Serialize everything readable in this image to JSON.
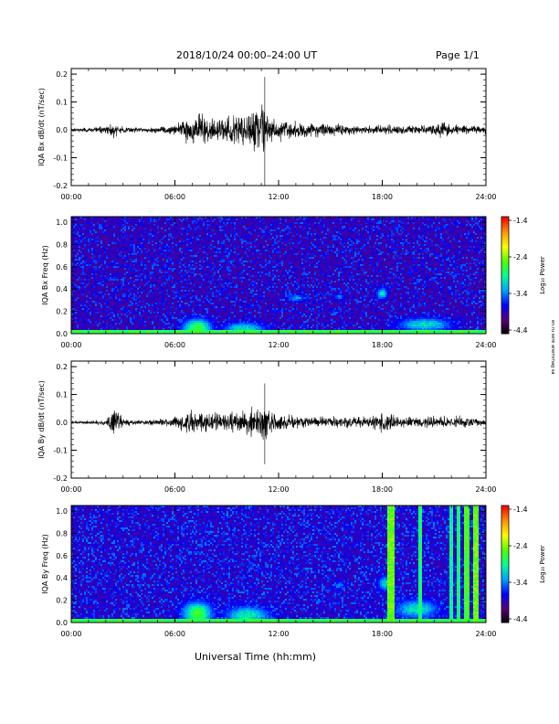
{
  "header": {
    "title": "2018/10/24  00:00–24:00 UT",
    "page": "Page 1/1"
  },
  "footer": {
    "xlabel": "Universal Time (hh:mm)",
    "side_note": "en.ru sere anemmag sa"
  },
  "colorbar": {
    "ticks": [
      "-1.4",
      "-2.4",
      "-3.4",
      "-4.4"
    ],
    "label": "Log₁₀ Power",
    "range": [
      -4.4,
      -1.4
    ],
    "colors": [
      "#000000",
      "#5a0078",
      "#0000ff",
      "#00a0ff",
      "#00ff96",
      "#50ff00",
      "#ffff00",
      "#ff9600",
      "#ff0000"
    ]
  },
  "chart_data": [
    {
      "type": "line",
      "ylabel": "IQA Bx dB/dt (nT/sec)",
      "xlim": [
        0,
        24
      ],
      "ylim": [
        -0.2,
        0.22
      ],
      "xticks": [
        "00:00",
        "06:00",
        "12:00",
        "18:00",
        "24:00"
      ],
      "yticks": [
        "0.2",
        "0.1",
        "0.0",
        "-0.1",
        "-0.2"
      ],
      "ytick_values": [
        0.2,
        0.1,
        0.0,
        -0.1,
        -0.2
      ],
      "envelope_hours": [
        0,
        1,
        2,
        2.5,
        3,
        4,
        5,
        6,
        6.5,
        7,
        7.5,
        8,
        8.5,
        9,
        9.5,
        10,
        10.5,
        11,
        11.5,
        12,
        13,
        14,
        15,
        16,
        17,
        18,
        19,
        20,
        21,
        21.5,
        22,
        23,
        24
      ],
      "envelope_amplitude": [
        0.008,
        0.01,
        0.02,
        0.04,
        0.015,
        0.012,
        0.015,
        0.025,
        0.05,
        0.07,
        0.09,
        0.06,
        0.05,
        0.06,
        0.07,
        0.08,
        0.09,
        0.13,
        0.07,
        0.05,
        0.04,
        0.035,
        0.03,
        0.025,
        0.02,
        0.025,
        0.02,
        0.02,
        0.025,
        0.04,
        0.025,
        0.02,
        0.02
      ],
      "spikes": [
        {
          "hour": 11.2,
          "max": 0.19,
          "min": -0.2
        }
      ]
    },
    {
      "type": "heatmap",
      "ylabel": "IQA Bx Freq (Hz)",
      "xlim": [
        0,
        24
      ],
      "ylim": [
        0,
        1.05
      ],
      "xticks": [
        "00:00",
        "06:00",
        "12:00",
        "18:00",
        "24:00"
      ],
      "yticks": [
        "1.0",
        "0.8",
        "0.6",
        "0.4",
        "0.2",
        "0.0"
      ],
      "ytick_values": [
        1.0,
        0.8,
        0.6,
        0.4,
        0.2,
        0.0
      ],
      "zlim": [
        -4.4,
        -1.4
      ],
      "background_level": -3.9,
      "blobs": [
        {
          "hour": 7.3,
          "freq": 0.05,
          "h_width": 0.8,
          "f_width": 0.08,
          "level": -2.6
        },
        {
          "hour": 10.0,
          "freq": 0.04,
          "h_width": 1.2,
          "f_width": 0.06,
          "level": -3.0
        },
        {
          "hour": 13.0,
          "freq": 0.32,
          "h_width": 0.5,
          "f_width": 0.03,
          "level": -3.2
        },
        {
          "hour": 15.5,
          "freq": 0.33,
          "h_width": 0.3,
          "f_width": 0.03,
          "level": -3.3
        },
        {
          "hour": 18.0,
          "freq": 0.36,
          "h_width": 0.3,
          "f_width": 0.05,
          "level": -3.0
        },
        {
          "hour": 20.5,
          "freq": 0.08,
          "h_width": 1.5,
          "f_width": 0.06,
          "level": -3.0
        }
      ],
      "bands": []
    },
    {
      "type": "line",
      "ylabel": "IQA By dB/dt (nT/sec)",
      "xlim": [
        0,
        24
      ],
      "ylim": [
        -0.2,
        0.22
      ],
      "xticks": [
        "00:00",
        "06:00",
        "12:00",
        "18:00",
        "24:00"
      ],
      "yticks": [
        "0.2",
        "0.1",
        "0.0",
        "-0.1",
        "-0.2"
      ],
      "ytick_values": [
        0.2,
        0.1,
        0.0,
        -0.1,
        -0.2
      ],
      "envelope_hours": [
        0,
        1,
        2,
        2.3,
        2.6,
        3,
        4,
        5,
        6,
        6.5,
        7,
        7.5,
        8,
        9,
        10,
        10.5,
        11,
        11.5,
        12,
        13,
        14,
        15,
        16,
        17,
        18,
        18.5,
        19,
        20,
        21,
        22,
        23,
        24
      ],
      "envelope_amplitude": [
        0.006,
        0.008,
        0.015,
        0.05,
        0.08,
        0.02,
        0.012,
        0.015,
        0.025,
        0.05,
        0.06,
        0.05,
        0.04,
        0.045,
        0.06,
        0.07,
        0.08,
        0.06,
        0.04,
        0.03,
        0.025,
        0.025,
        0.03,
        0.025,
        0.05,
        0.045,
        0.03,
        0.025,
        0.03,
        0.03,
        0.025,
        0.02
      ],
      "spikes": [
        {
          "hour": 11.2,
          "max": 0.14,
          "min": -0.15
        }
      ]
    },
    {
      "type": "heatmap",
      "ylabel": "IQA By Freq (Hz)",
      "xlim": [
        0,
        24
      ],
      "ylim": [
        0,
        1.05
      ],
      "xticks": [
        "00:00",
        "06:00",
        "12:00",
        "18:00",
        "24:00"
      ],
      "yticks": [
        "1.0",
        "0.8",
        "0.6",
        "0.4",
        "0.2",
        "0.0"
      ],
      "ytick_values": [
        1.0,
        0.8,
        0.6,
        0.4,
        0.2,
        0.0
      ],
      "zlim": [
        -4.4,
        -1.4
      ],
      "background_level": -3.85,
      "blobs": [
        {
          "hour": 7.3,
          "freq": 0.08,
          "h_width": 0.8,
          "f_width": 0.1,
          "level": -2.6
        },
        {
          "hour": 10.2,
          "freq": 0.06,
          "h_width": 1.2,
          "f_width": 0.08,
          "level": -2.9
        },
        {
          "hour": 15.5,
          "freq": 0.33,
          "h_width": 0.3,
          "f_width": 0.03,
          "level": -3.3
        },
        {
          "hour": 18.2,
          "freq": 0.35,
          "h_width": 0.4,
          "f_width": 0.06,
          "level": -3.0
        },
        {
          "hour": 20.0,
          "freq": 0.12,
          "h_width": 1.2,
          "f_width": 0.08,
          "level": -3.0
        }
      ],
      "bands": [
        {
          "hour": 18.5,
          "width": 0.35,
          "level": -2.5
        },
        {
          "hour": 20.2,
          "width": 0.15,
          "level": -2.8
        },
        {
          "hour": 22.0,
          "width": 0.1,
          "level": -2.9
        },
        {
          "hour": 22.4,
          "width": 0.12,
          "level": -2.8
        },
        {
          "hour": 22.9,
          "width": 0.2,
          "level": -2.6
        },
        {
          "hour": 23.4,
          "width": 0.2,
          "level": -2.5
        }
      ]
    }
  ]
}
